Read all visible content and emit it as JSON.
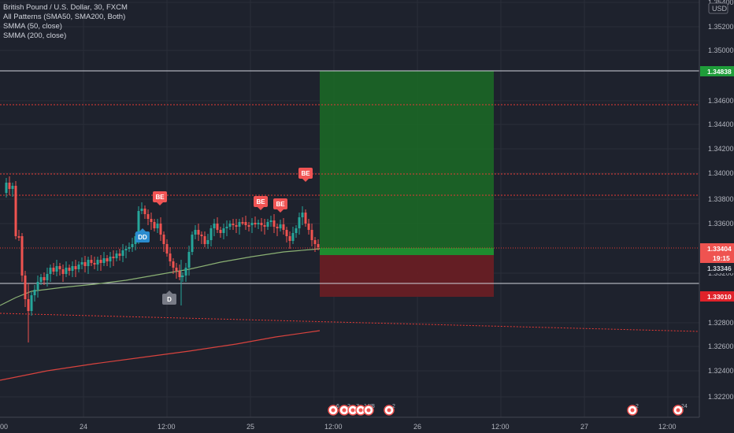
{
  "legend": {
    "title": "British Pound / U.S. Dollar, 30, FXCM",
    "study_1": "All Patterns (SMA50, SMA200, Both)",
    "study_2": "SMMA (50, close)",
    "study_3": "SMMA (200, close)"
  },
  "currency": "USD",
  "price_axis": {
    "ticks": [
      "1.35400",
      "1.35200",
      "1.35000",
      "1.34600",
      "1.34400",
      "1.34200",
      "1.34000",
      "1.33800",
      "1.33600",
      "1.33200",
      "1.32800",
      "1.32600",
      "1.32400",
      "1.32200"
    ]
  },
  "price_tags": {
    "target": "1.34838",
    "current": "1.33404",
    "countdown": "19:15",
    "sma": "1.33346",
    "stop": "1.33010"
  },
  "time_axis": {
    "labels": [
      "00",
      "24",
      "12:00",
      "25",
      "12:00",
      "26",
      "12:00",
      "27",
      "12:00"
    ]
  },
  "pattern_badges": [
    {
      "text": "BE",
      "kind": "bearish"
    },
    {
      "text": "BE",
      "kind": "bearish"
    },
    {
      "text": "BE",
      "kind": "bearish"
    },
    {
      "text": "BE",
      "kind": "bearish"
    },
    {
      "text": "DD",
      "kind": "doji"
    },
    {
      "text": "D",
      "kind": "neutral"
    }
  ],
  "event_markers": [
    {
      "label": "6"
    },
    {
      "label": "2"
    },
    {
      "label": "7"
    },
    {
      "label": "148"
    },
    {
      "label": "3"
    },
    {
      "label": "2"
    },
    {
      "label": "2"
    },
    {
      "label": "24"
    }
  ],
  "colors": {
    "background": "#1e222d",
    "up_candle": "#26a69a",
    "down_candle": "#ef5350",
    "profit_zone": "#1b6b26",
    "loss_zone": "#6b1e24",
    "sma50": "#8bb174",
    "sma200": "#d9433e",
    "target_tag": "#1f9d3a",
    "stop_tag": "#e0222a",
    "badge_bearish": "#f05454",
    "badge_doji": "#2b8ccf",
    "badge_neutral": "#787b86"
  },
  "chart_data": {
    "type": "candlestick",
    "symbol": "British Pound / U.S. Dollar",
    "timeframe": "30",
    "target_price": 1.34838,
    "entry_price": 1.33404,
    "stop_price": 1.3301,
    "y_range": [
      1.32,
      1.3554
    ]
  }
}
